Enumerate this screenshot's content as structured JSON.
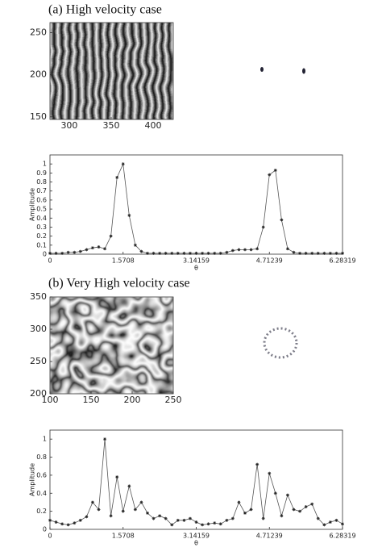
{
  "chart_data": [
    {
      "type": "image",
      "title": "(a) High velocity case",
      "xlim": [
        277,
        424
      ],
      "ylim": [
        147,
        262
      ],
      "xticks": [
        300,
        350,
        400
      ],
      "yticks": [
        150,
        200,
        250
      ]
    },
    {
      "type": "line",
      "xlabel": "θ",
      "ylabel": "Amplitude",
      "color": "#555555",
      "x": [
        0,
        0.1309,
        0.2618,
        0.3927,
        0.5236,
        0.6545,
        0.7854,
        0.9163,
        1.0472,
        1.1781,
        1.309,
        1.4399,
        1.5708,
        1.7017,
        1.8326,
        1.9635,
        2.0944,
        2.2253,
        2.3562,
        2.4871,
        2.618,
        2.7489,
        2.8798,
        3.0107,
        3.1416,
        3.2725,
        3.4034,
        3.5343,
        3.6652,
        3.7961,
        3.927,
        4.0579,
        4.1888,
        4.3197,
        4.4506,
        4.5815,
        4.7124,
        4.8433,
        4.9742,
        5.1051,
        5.236,
        5.3669,
        5.4978,
        5.6287,
        5.7596,
        5.8905,
        6.0214,
        6.1523,
        6.2832
      ],
      "values": [
        0.01,
        0.01,
        0.01,
        0.02,
        0.02,
        0.03,
        0.05,
        0.07,
        0.08,
        0.06,
        0.2,
        0.85,
        1.0,
        0.43,
        0.1,
        0.03,
        0.01,
        0.01,
        0.01,
        0.01,
        0.01,
        0.01,
        0.01,
        0.01,
        0.01,
        0.01,
        0.01,
        0.01,
        0.01,
        0.02,
        0.04,
        0.05,
        0.05,
        0.05,
        0.06,
        0.3,
        0.88,
        0.93,
        0.38,
        0.06,
        0.02,
        0.01,
        0.01,
        0.01,
        0.01,
        0.01,
        0.01,
        0.01,
        0.01
      ],
      "xlim": [
        0,
        6.28319
      ],
      "xticks": [
        0,
        1.5708,
        3.14159,
        4.71239,
        6.28319
      ],
      "ylim": [
        0,
        1.1
      ],
      "yticks": [
        0,
        0.1,
        0.2,
        0.3,
        0.4,
        0.5,
        0.6,
        0.7,
        0.8,
        0.9,
        1
      ]
    },
    {
      "type": "image",
      "title": "(b) Very High velocity case",
      "xlim": [
        100,
        250
      ],
      "ylim": [
        200,
        350
      ],
      "xticks": [
        100,
        150,
        200,
        250
      ],
      "yticks": [
        200,
        250,
        300,
        350
      ]
    },
    {
      "type": "line",
      "xlabel": "θ",
      "ylabel": "Amplitude",
      "color": "#555555",
      "x": [
        0,
        0.1309,
        0.2618,
        0.3927,
        0.5236,
        0.6545,
        0.7854,
        0.9163,
        1.0472,
        1.1781,
        1.309,
        1.4399,
        1.5708,
        1.7017,
        1.8326,
        1.9635,
        2.0944,
        2.2253,
        2.3562,
        2.4871,
        2.618,
        2.7489,
        2.8798,
        3.0107,
        3.1416,
        3.2725,
        3.4034,
        3.5343,
        3.6652,
        3.7961,
        3.927,
        4.0579,
        4.1888,
        4.3197,
        4.4506,
        4.5815,
        4.7124,
        4.8433,
        4.9742,
        5.1051,
        5.236,
        5.3669,
        5.4978,
        5.6287,
        5.7596,
        5.8905,
        6.0214,
        6.1523,
        6.2832
      ],
      "values": [
        0.1,
        0.08,
        0.06,
        0.05,
        0.07,
        0.1,
        0.14,
        0.3,
        0.22,
        1.0,
        0.15,
        0.58,
        0.2,
        0.48,
        0.22,
        0.3,
        0.18,
        0.12,
        0.15,
        0.12,
        0.05,
        0.1,
        0.1,
        0.12,
        0.08,
        0.05,
        0.06,
        0.07,
        0.06,
        0.1,
        0.12,
        0.3,
        0.18,
        0.22,
        0.72,
        0.12,
        0.62,
        0.4,
        0.15,
        0.38,
        0.22,
        0.2,
        0.25,
        0.28,
        0.12,
        0.05,
        0.08,
        0.1,
        0.06
      ],
      "xlim": [
        0,
        6.28319
      ],
      "xticks": [
        0,
        1.5708,
        3.14159,
        4.71239,
        6.28319
      ],
      "ylim": [
        0,
        1.1
      ],
      "yticks": [
        0,
        0.2,
        0.4,
        0.6,
        0.8,
        1
      ]
    }
  ]
}
